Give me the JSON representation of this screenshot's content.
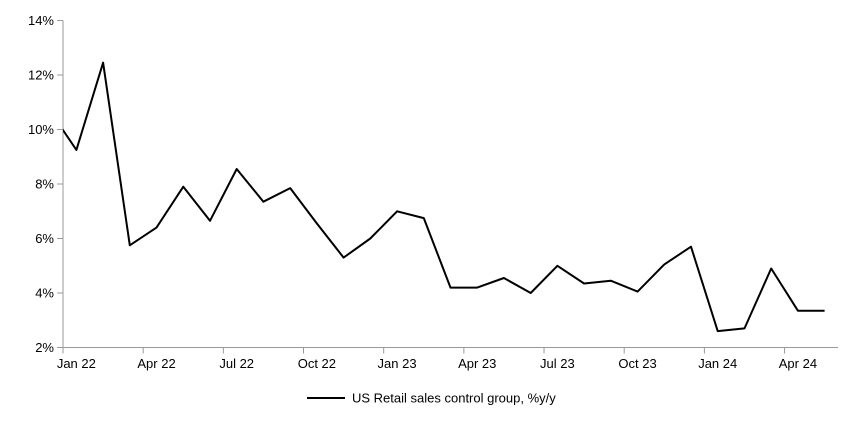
{
  "page": {
    "background": "#ffffff"
  },
  "chart_data": {
    "type": "line",
    "title": "",
    "legend": {
      "label": "US Retail sales control group, %y/y",
      "position": "bottom-center"
    },
    "x": [
      "Dec 21",
      "Jan 22",
      "Feb 22",
      "Mar 22",
      "Apr 22",
      "May 22",
      "Jun 22",
      "Jul 22",
      "Aug 22",
      "Sep 22",
      "Oct 22",
      "Nov 22",
      "Dec 22",
      "Jan 23",
      "Feb 23",
      "Mar 23",
      "Apr 23",
      "May 23",
      "Jun 23",
      "Jul 23",
      "Aug 23",
      "Sep 23",
      "Oct 23",
      "Nov 23",
      "Dec 23",
      "Jan 24",
      "Feb 24",
      "Mar 24",
      "Apr 24",
      "May 24"
    ],
    "first_point_clipped_at_left_axis": true,
    "series": [
      {
        "name": "US Retail sales control group, %y/y",
        "color": "#000000",
        "values": [
          10.7,
          9.25,
          12.45,
          5.75,
          6.4,
          7.9,
          6.65,
          8.55,
          7.35,
          7.85,
          6.55,
          5.3,
          6.0,
          7.0,
          6.75,
          4.2,
          4.2,
          4.55,
          4.0,
          5.0,
          4.35,
          4.45,
          4.05,
          5.05,
          5.7,
          2.6,
          2.7,
          4.9,
          3.35,
          3.35
        ]
      }
    ],
    "x_axis": {
      "tick_labels": [
        "Jan 22",
        "Apr 22",
        "Jul 22",
        "Oct 22",
        "Jan 23",
        "Apr 23",
        "Jul 23",
        "Oct 23",
        "Jan 24",
        "Apr 24"
      ],
      "months_per_tick": 3,
      "ticks_between_categories": true
    },
    "y_axis": {
      "min": 2,
      "max": 14,
      "step": 2,
      "tick_labels": [
        "2%",
        "4%",
        "6%",
        "8%",
        "10%",
        "12%",
        "14%"
      ]
    },
    "grid": false,
    "axis_color": "#999999",
    "line_color": "#000000",
    "text_color": "#000000"
  }
}
